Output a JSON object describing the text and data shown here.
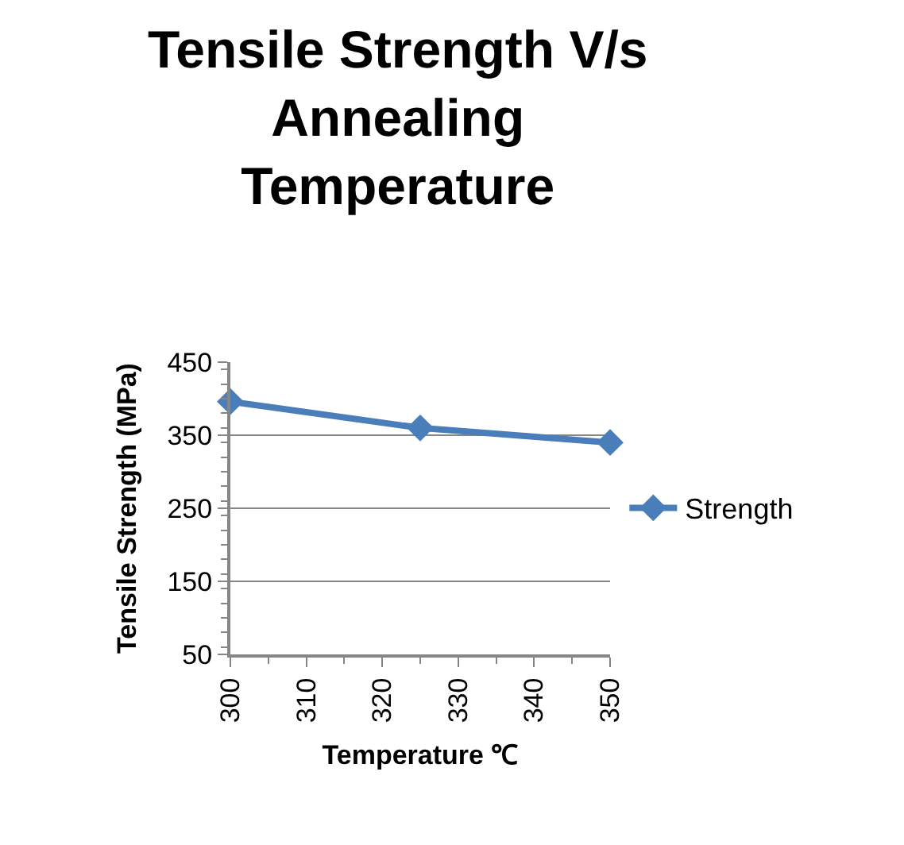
{
  "chart_data": {
    "type": "line",
    "title": "Tensile Strength V/s\nAnnealing\nTemperature",
    "xlabel": "Temperature ℃",
    "ylabel": "Tensile Strength (MPa)",
    "x": [
      300,
      325,
      350
    ],
    "series": [
      {
        "name": "Strength",
        "color": "#4a7ebb",
        "values": [
          396,
          360,
          340
        ]
      }
    ],
    "xlim": [
      300,
      350
    ],
    "xticks": [
      300,
      310,
      320,
      330,
      340,
      350
    ],
    "ylim": [
      50,
      450
    ],
    "yticks": [
      50,
      150,
      250,
      350,
      450
    ],
    "grid": "y",
    "legend": "right",
    "marker": "diamond",
    "line_style": "solid"
  }
}
